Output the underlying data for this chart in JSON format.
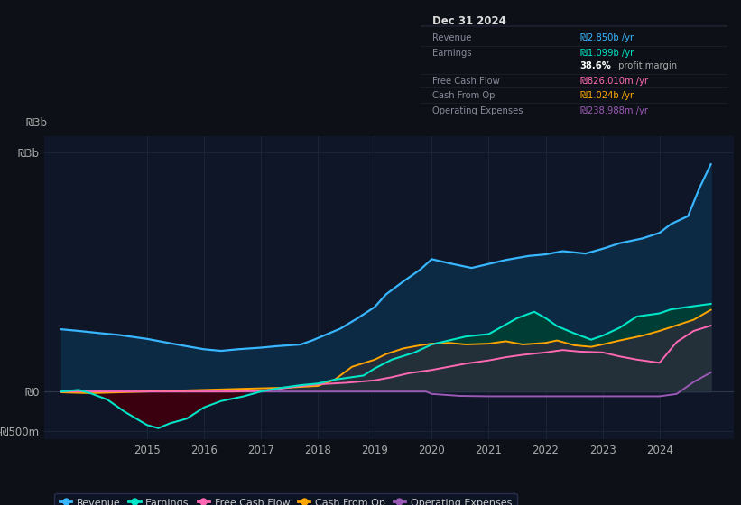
{
  "bg_color": "#0d1117",
  "plot_bg_color": "#0e1628",
  "grid_color": "#1a2535",
  "title_box": {
    "date": "Dec 31 2024",
    "rows": [
      {
        "label": "Revenue",
        "value": "₪2.850b /yr",
        "color": "#38b6ff"
      },
      {
        "label": "Earnings",
        "value": "₪1.099b /yr",
        "color": "#00e5c8"
      },
      {
        "label": "",
        "value": "38.6% profit margin",
        "color": "#ffffff"
      },
      {
        "label": "Free Cash Flow",
        "value": "₪826.010m /yr",
        "color": "#ff69b4"
      },
      {
        "label": "Cash From Op",
        "value": "₪1.024b /yr",
        "color": "#ffa500"
      },
      {
        "label": "Operating Expenses",
        "value": "₪238.988m /yr",
        "color": "#9b59b6"
      }
    ],
    "text_color": "#888899"
  },
  "ylim": [
    -600,
    3200
  ],
  "ytick_vals": [
    -500,
    0,
    3000
  ],
  "ytick_labels": [
    "-₪500m",
    "₪0",
    "₪3b"
  ],
  "xlim": [
    2013.2,
    2025.3
  ],
  "xlabel_years": [
    "2015",
    "2016",
    "2017",
    "2018",
    "2019",
    "2020",
    "2021",
    "2022",
    "2023",
    "2024"
  ],
  "xtick_pos": [
    2015.0,
    2016.0,
    2017.0,
    2018.0,
    2019.0,
    2020.0,
    2021.0,
    2022.0,
    2023.0,
    2024.0
  ],
  "series": {
    "revenue": {
      "color": "#38b6ff",
      "fill_color": "#0d2a45",
      "x": [
        2013.5,
        2013.8,
        2014.2,
        2014.5,
        2014.8,
        2015.0,
        2015.3,
        2015.6,
        2016.0,
        2016.3,
        2016.6,
        2017.0,
        2017.3,
        2017.7,
        2017.9,
        2018.1,
        2018.4,
        2018.7,
        2019.0,
        2019.2,
        2019.5,
        2019.8,
        2020.0,
        2020.3,
        2020.7,
        2021.0,
        2021.3,
        2021.7,
        2022.0,
        2022.3,
        2022.7,
        2023.0,
        2023.3,
        2023.7,
        2024.0,
        2024.2,
        2024.5,
        2024.7,
        2024.9
      ],
      "y": [
        780,
        760,
        730,
        710,
        680,
        660,
        620,
        580,
        530,
        510,
        530,
        550,
        570,
        590,
        640,
        700,
        790,
        920,
        1060,
        1220,
        1380,
        1530,
        1660,
        1610,
        1550,
        1600,
        1650,
        1700,
        1720,
        1760,
        1730,
        1790,
        1860,
        1920,
        1990,
        2100,
        2200,
        2550,
        2850
      ]
    },
    "earnings": {
      "color": "#00e5c8",
      "fill_color": "#003d35",
      "x": [
        2013.5,
        2013.8,
        2014.0,
        2014.3,
        2014.6,
        2015.0,
        2015.2,
        2015.4,
        2015.7,
        2016.0,
        2016.3,
        2016.7,
        2017.0,
        2017.3,
        2017.7,
        2018.0,
        2018.3,
        2018.8,
        2019.0,
        2019.3,
        2019.7,
        2020.0,
        2020.3,
        2020.6,
        2021.0,
        2021.2,
        2021.5,
        2021.8,
        2022.0,
        2022.2,
        2022.5,
        2022.8,
        2023.0,
        2023.3,
        2023.6,
        2024.0,
        2024.2,
        2024.5,
        2024.7,
        2024.9
      ],
      "y": [
        0,
        20,
        -20,
        -100,
        -250,
        -420,
        -460,
        -400,
        -340,
        -200,
        -120,
        -60,
        0,
        40,
        80,
        100,
        150,
        200,
        290,
        400,
        490,
        590,
        640,
        690,
        720,
        800,
        920,
        1000,
        920,
        820,
        730,
        650,
        700,
        800,
        940,
        980,
        1030,
        1060,
        1080,
        1099
      ]
    },
    "free_cash_flow": {
      "color": "#ff69b4",
      "x": [
        2013.5,
        2014.5,
        2015.0,
        2015.5,
        2016.0,
        2016.5,
        2017.0,
        2017.3,
        2017.6,
        2018.0,
        2018.5,
        2019.0,
        2019.3,
        2019.6,
        2020.0,
        2020.3,
        2020.6,
        2021.0,
        2021.3,
        2021.6,
        2022.0,
        2022.3,
        2022.6,
        2023.0,
        2023.3,
        2023.6,
        2024.0,
        2024.3,
        2024.6,
        2024.9
      ],
      "y": [
        0,
        0,
        0,
        0,
        0,
        0,
        10,
        30,
        60,
        90,
        110,
        140,
        180,
        230,
        270,
        310,
        350,
        390,
        430,
        460,
        490,
        520,
        500,
        490,
        440,
        400,
        360,
        620,
        760,
        826
      ]
    },
    "cash_from_op": {
      "color": "#ffa500",
      "fill_color": "#2a1800",
      "x": [
        2013.5,
        2014.0,
        2014.5,
        2015.0,
        2015.5,
        2016.0,
        2016.5,
        2017.0,
        2017.5,
        2018.0,
        2018.3,
        2018.6,
        2019.0,
        2019.2,
        2019.5,
        2019.8,
        2020.0,
        2020.3,
        2020.6,
        2021.0,
        2021.3,
        2021.6,
        2022.0,
        2022.2,
        2022.5,
        2022.8,
        2023.0,
        2023.3,
        2023.7,
        2024.0,
        2024.3,
        2024.6,
        2024.9
      ],
      "y": [
        -10,
        -20,
        -10,
        0,
        10,
        20,
        30,
        40,
        50,
        70,
        150,
        310,
        400,
        470,
        540,
        580,
        600,
        610,
        590,
        600,
        630,
        590,
        610,
        640,
        580,
        560,
        590,
        640,
        700,
        760,
        830,
        900,
        1024
      ]
    },
    "operating_expenses": {
      "color": "#9b59b6",
      "x": [
        2013.5,
        2015.0,
        2016.0,
        2017.0,
        2018.0,
        2019.0,
        2019.9,
        2020.0,
        2020.5,
        2021.0,
        2021.5,
        2022.0,
        2022.5,
        2023.0,
        2023.5,
        2024.0,
        2024.3,
        2024.6,
        2024.9
      ],
      "y": [
        0,
        0,
        0,
        0,
        0,
        0,
        0,
        -30,
        -55,
        -60,
        -60,
        -60,
        -60,
        -60,
        -60,
        -60,
        -30,
        120,
        239
      ]
    }
  },
  "legend": [
    {
      "label": "Revenue",
      "color": "#38b6ff"
    },
    {
      "label": "Earnings",
      "color": "#00e5c8"
    },
    {
      "label": "Free Cash Flow",
      "color": "#ff69b4"
    },
    {
      "label": "Cash From Op",
      "color": "#ffa500"
    },
    {
      "label": "Operating Expenses",
      "color": "#9b59b6"
    }
  ]
}
